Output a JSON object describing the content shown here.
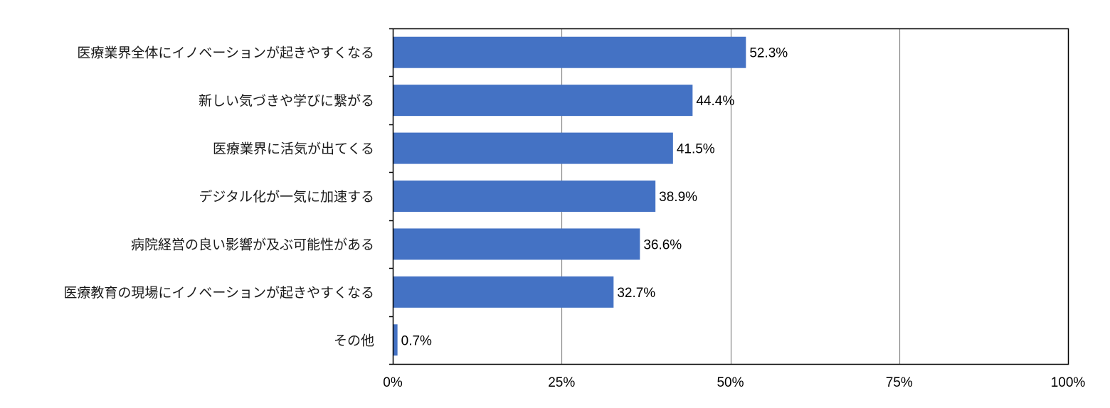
{
  "chart_data": {
    "type": "bar",
    "orientation": "horizontal",
    "categories": [
      "医療業界全体にイノベーションが起きやすくなる",
      "新しい気づきや学びに繋がる",
      "医療業界に活気が出てくる",
      "デジタル化が一気に加速する",
      "病院経営の良い影響が及ぶ可能性がある",
      "医療教育の現場にイノベーションが起きやすくなる",
      "その他"
    ],
    "values": [
      52.3,
      44.4,
      41.5,
      38.9,
      36.6,
      32.7,
      0.7
    ],
    "data_labels": [
      "52.3%",
      "44.4%",
      "41.5%",
      "38.9%",
      "36.6%",
      "32.7%",
      "0.7%"
    ],
    "x_ticks": [
      0,
      25,
      50,
      75,
      100
    ],
    "x_tick_labels": [
      "0%",
      "25%",
      "50%",
      "75%",
      "100%"
    ],
    "xlim": [
      0,
      100
    ],
    "grid": "vertical",
    "bar_color": "#4472C4",
    "grid_color": "#888888",
    "title": "",
    "xlabel": "",
    "ylabel": ""
  }
}
